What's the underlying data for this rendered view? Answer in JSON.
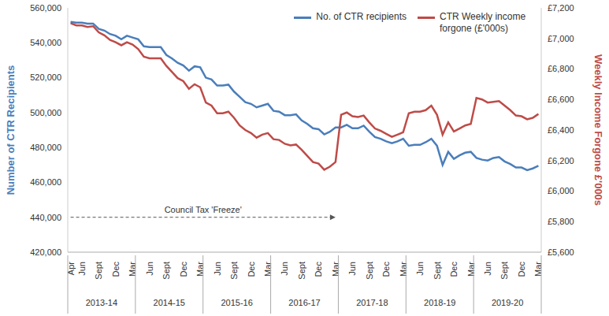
{
  "chart_data": {
    "type": "line",
    "categories": [
      "Apr",
      null,
      "Jun",
      null,
      null,
      "Sept",
      null,
      null,
      "Dec",
      null,
      null,
      "Mar",
      null,
      null,
      "Jun",
      null,
      null,
      "Sept",
      null,
      null,
      "Dec",
      null,
      null,
      "Mar",
      null,
      null,
      "Jun",
      null,
      null,
      "Sept",
      null,
      null,
      "Dec",
      null,
      null,
      "Mar",
      null,
      null,
      "Jun",
      null,
      null,
      "Sept",
      null,
      null,
      "Dec",
      null,
      null,
      "Mar",
      null,
      null,
      "Jun",
      null,
      null,
      "Sept",
      null,
      null,
      "Dec",
      null,
      null,
      "Mar",
      null,
      null,
      "Jun",
      null,
      null,
      "Sept",
      null,
      null,
      "Dec",
      null,
      null,
      "Mar",
      null,
      null,
      "Jun",
      null,
      null,
      "Sept",
      null,
      null,
      "Dec",
      null,
      null,
      "Mar"
    ],
    "x_groups": [
      "2013-14",
      "2014-15",
      "2015-16",
      "2016-17",
      "2017-18",
      "2018-19",
      "2019-20"
    ],
    "series": [
      {
        "name": "No. of CTR recipients",
        "color": "#4a7ebb",
        "axis": "y",
        "values": [
          552000,
          551500,
          551500,
          551000,
          551000,
          548000,
          547000,
          545000,
          544000,
          542000,
          544000,
          543000,
          542000,
          538000,
          537500,
          537500,
          537500,
          533000,
          531000,
          528500,
          527000,
          524000,
          526500,
          526000,
          520000,
          519000,
          515500,
          515500,
          516000,
          512000,
          509000,
          506000,
          505000,
          503000,
          504000,
          505000,
          501000,
          500500,
          498500,
          498500,
          499000,
          495500,
          493500,
          491000,
          490500,
          487500,
          489000,
          491500,
          491500,
          493000,
          491000,
          491000,
          492500,
          489000,
          486000,
          485000,
          483500,
          482500,
          483500,
          485000,
          481000,
          481500,
          481500,
          483000,
          485000,
          481000,
          470000,
          477500,
          473500,
          475500,
          477000,
          477500,
          474000,
          473000,
          472500,
          474000,
          474500,
          472000,
          470500,
          468500,
          468500,
          467000,
          468000,
          469500
        ]
      },
      {
        "name": "CTR Weekly income forgone (£'000s)",
        "color": "#be4b48",
        "axis": "y2",
        "values": [
          7100,
          7085,
          7085,
          7075,
          7080,
          7040,
          7020,
          6990,
          6975,
          6955,
          6975,
          6960,
          6930,
          6880,
          6870,
          6870,
          6870,
          6820,
          6780,
          6740,
          6720,
          6670,
          6700,
          6680,
          6580,
          6560,
          6510,
          6510,
          6520,
          6480,
          6430,
          6400,
          6380,
          6350,
          6370,
          6380,
          6340,
          6335,
          6310,
          6300,
          6305,
          6270,
          6230,
          6190,
          6180,
          6140,
          6160,
          6190,
          6500,
          6515,
          6490,
          6485,
          6495,
          6450,
          6410,
          6395,
          6375,
          6355,
          6370,
          6385,
          6510,
          6520,
          6520,
          6530,
          6560,
          6500,
          6370,
          6450,
          6390,
          6410,
          6430,
          6440,
          6610,
          6600,
          6580,
          6585,
          6590,
          6560,
          6530,
          6495,
          6490,
          6470,
          6480,
          6505
        ]
      }
    ],
    "y_label": "Number of CTR Recipients",
    "y2_label": "Weekly Income Forgone £'000s",
    "ylim": [
      420000,
      560000
    ],
    "yticks": [
      {
        "value": 420000,
        "label": "420,000"
      },
      {
        "value": 440000,
        "label": "440,000"
      },
      {
        "value": 460000,
        "label": "460,000"
      },
      {
        "value": 480000,
        "label": "480,000"
      },
      {
        "value": 500000,
        "label": "500,000"
      },
      {
        "value": 520000,
        "label": "520,000"
      },
      {
        "value": 540000,
        "label": "540,000"
      },
      {
        "value": 560000,
        "label": "560,000"
      }
    ],
    "y2lim": [
      5600,
      7200
    ],
    "y2ticks": [
      {
        "value": 5600,
        "label": "£5,600"
      },
      {
        "value": 5800,
        "label": "£5,800"
      },
      {
        "value": 6000,
        "label": "£6,000"
      },
      {
        "value": 6200,
        "label": "£6,200"
      },
      {
        "value": 6400,
        "label": "£6,400"
      },
      {
        "value": 6600,
        "label": "£6,600"
      },
      {
        "value": 6800,
        "label": "£6,800"
      },
      {
        "value": 7000,
        "label": "£7,000"
      },
      {
        "value": 7200,
        "label": "£7,200"
      }
    ],
    "annotation": "Council Tax 'Freeze'",
    "legend": "top right",
    "grid": false
  }
}
